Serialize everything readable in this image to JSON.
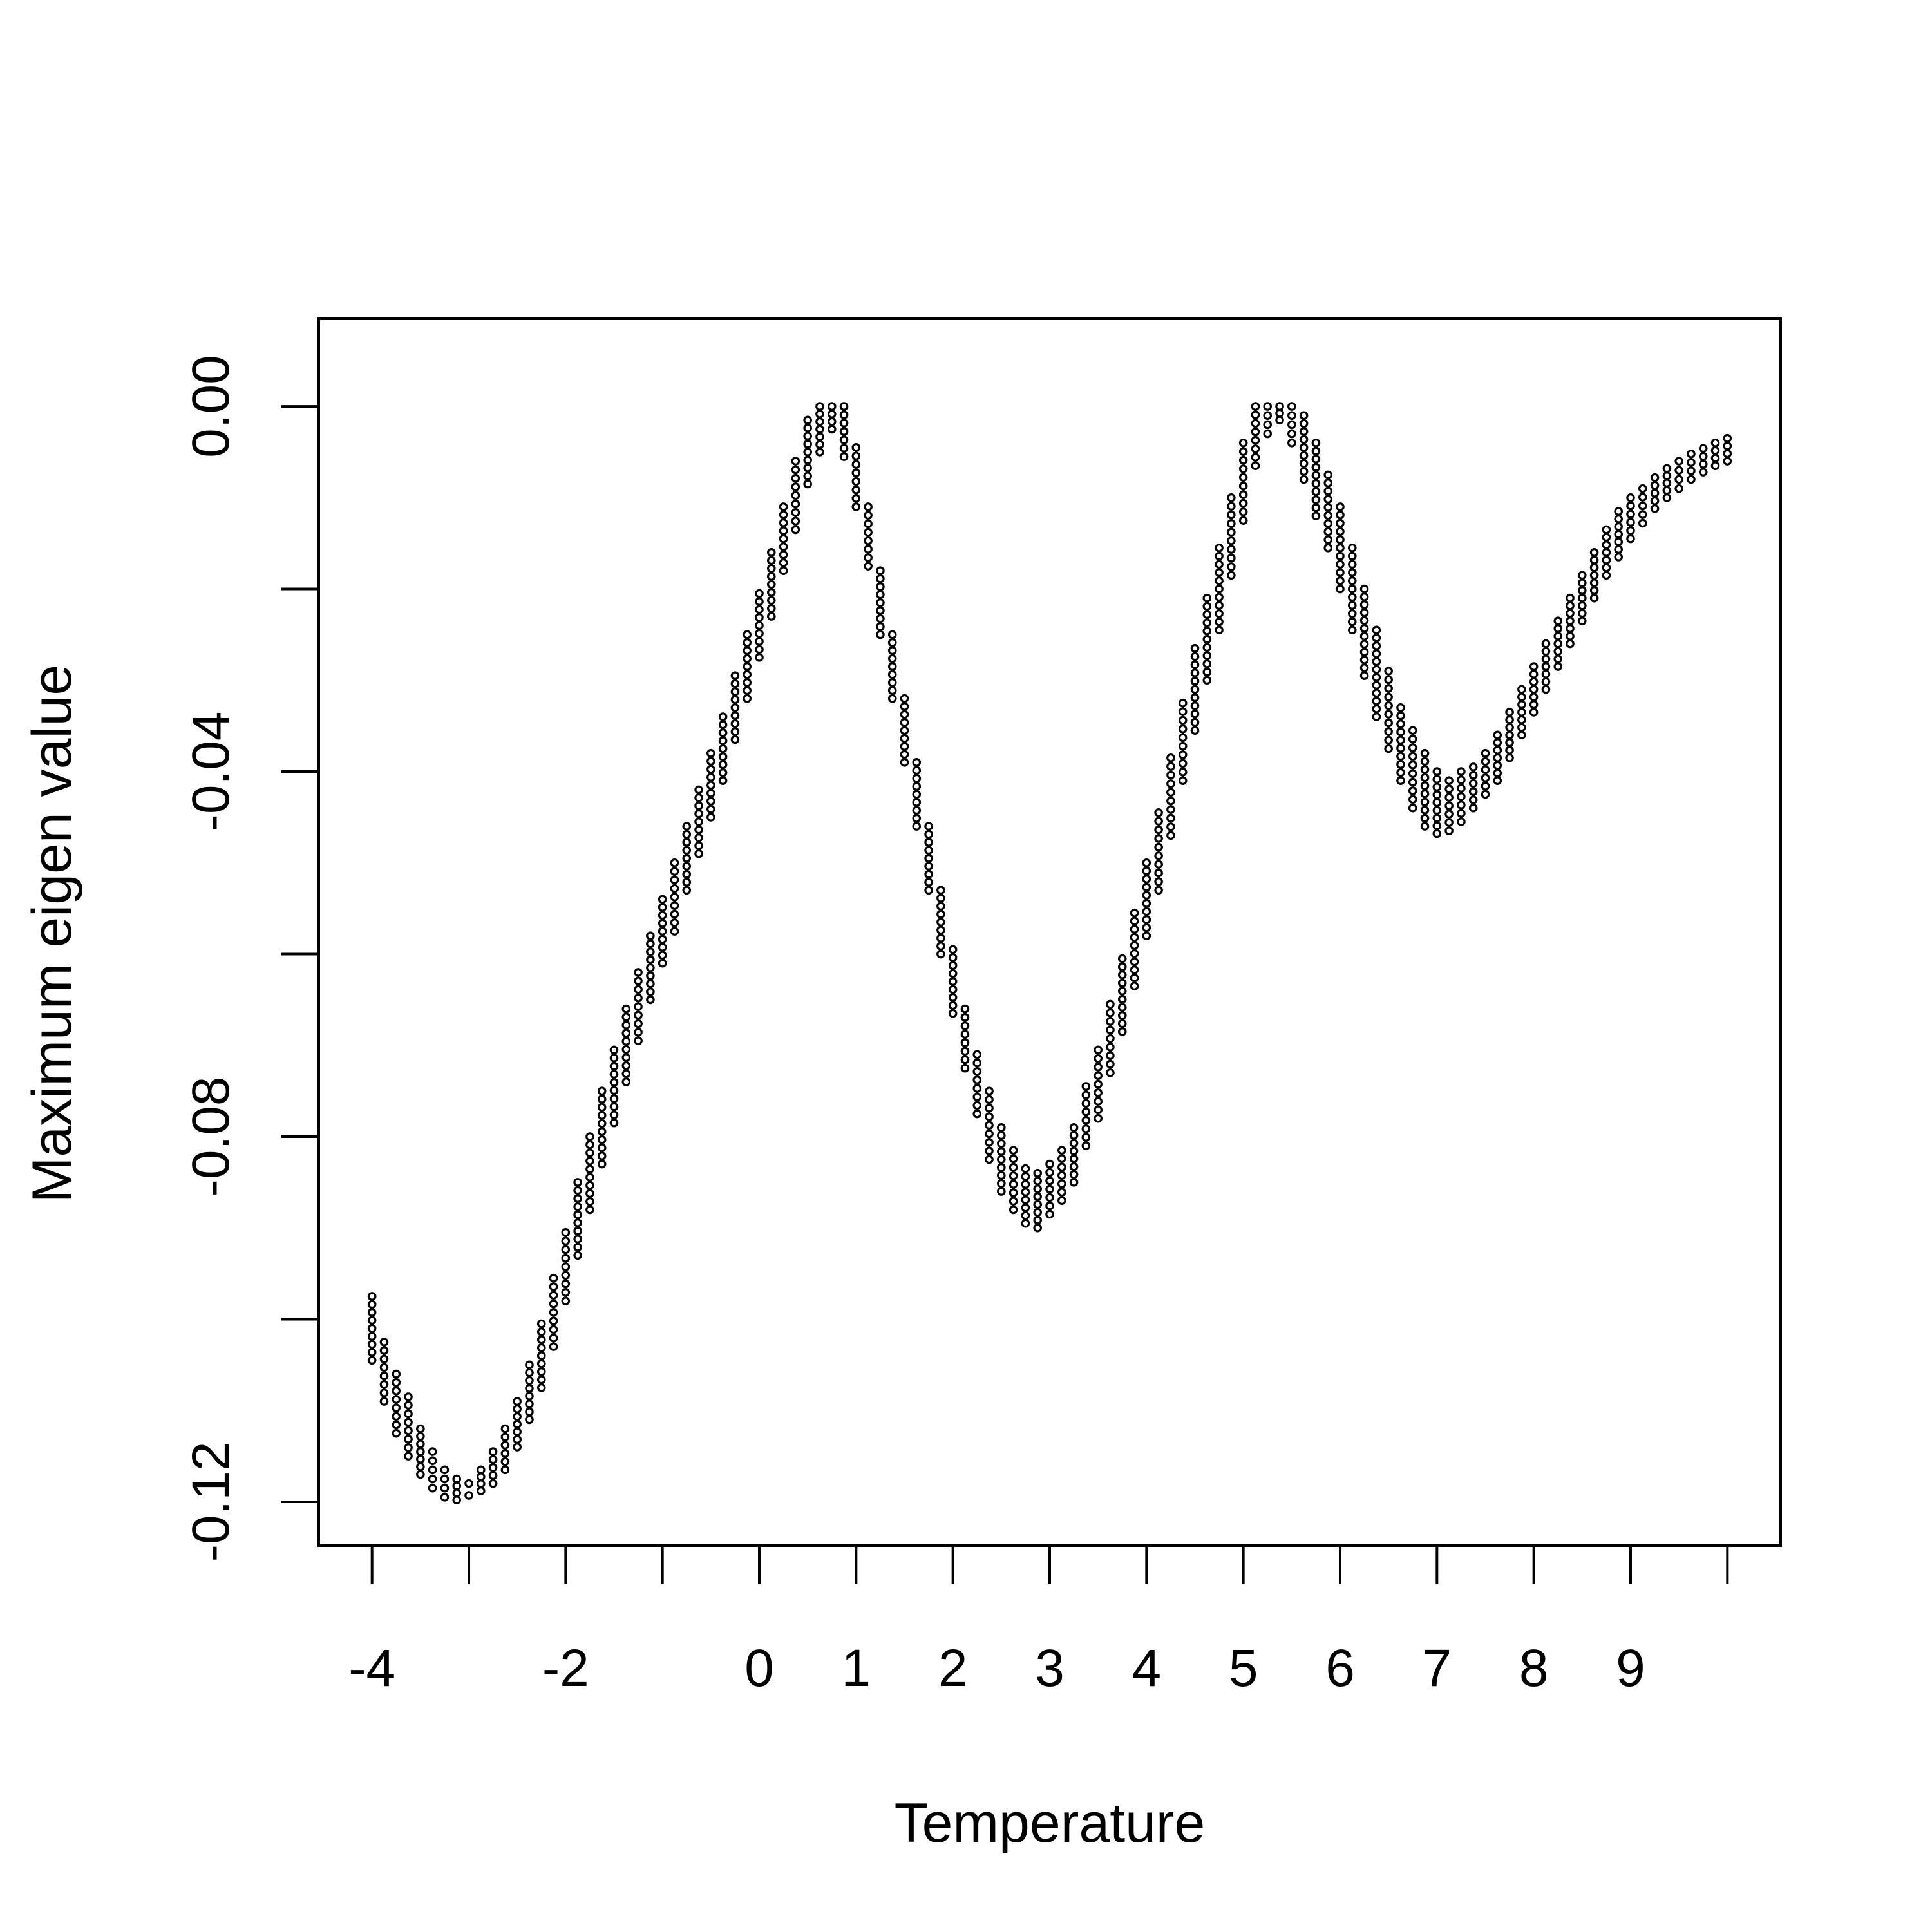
{
  "chart_data": {
    "type": "scatter",
    "title": "",
    "xlabel": "Temperature",
    "ylabel": "Maximum eigen value",
    "xlim": [
      -4.55,
      10.55
    ],
    "ylim": [
      -0.1248,
      0.0096
    ],
    "x_axis": {
      "tick_values": [
        -4,
        -3,
        -2,
        -1,
        0,
        1,
        2,
        3,
        4,
        5,
        6,
        7,
        8,
        9,
        10
      ],
      "tick_labels": [
        "-4",
        "",
        "-2",
        "",
        "0",
        "1",
        "2",
        "3",
        "4",
        "5",
        "6",
        "7",
        "8",
        "9",
        ""
      ]
    },
    "y_axis": {
      "tick_values": [
        0.0,
        -0.02,
        -0.04,
        -0.06,
        -0.08,
        -0.1,
        -0.12
      ],
      "tick_labels": [
        "0.00",
        "",
        "-0.04",
        "",
        "-0.08",
        "",
        "-0.12"
      ]
    },
    "grid": false,
    "legend": "none",
    "point_color": "#000000",
    "series": [
      {
        "columns_x_start": -4,
        "columns_x_step": 0.125,
        "column_ranges": [
          [
            -0.1045,
            -0.0975
          ],
          [
            -0.109,
            -0.1025
          ],
          [
            -0.1125,
            -0.106
          ],
          [
            -0.115,
            -0.1085
          ],
          [
            -0.117,
            -0.112
          ],
          [
            -0.1185,
            -0.1145
          ],
          [
            -0.1195,
            -0.1165
          ],
          [
            -0.1198,
            -0.1175
          ],
          [
            -0.1193,
            -0.118
          ],
          [
            -0.1188,
            -0.1165
          ],
          [
            -0.118,
            -0.1145
          ],
          [
            -0.1165,
            -0.112
          ],
          [
            -0.114,
            -0.109
          ],
          [
            -0.111,
            -0.105
          ],
          [
            -0.1075,
            -0.1005
          ],
          [
            -0.103,
            -0.0955
          ],
          [
            -0.098,
            -0.0905
          ],
          [
            -0.093,
            -0.085
          ],
          [
            -0.088,
            -0.08
          ],
          [
            -0.083,
            -0.075
          ],
          [
            -0.0785,
            -0.0705
          ],
          [
            -0.074,
            -0.066
          ],
          [
            -0.0695,
            -0.062
          ],
          [
            -0.065,
            -0.058
          ],
          [
            -0.061,
            -0.054
          ],
          [
            -0.0575,
            -0.05
          ],
          [
            -0.053,
            -0.046
          ],
          [
            -0.049,
            -0.042
          ],
          [
            -0.045,
            -0.038
          ],
          [
            -0.041,
            -0.034
          ],
          [
            -0.0365,
            -0.0295
          ],
          [
            -0.032,
            -0.025
          ],
          [
            -0.0275,
            -0.0205
          ],
          [
            -0.023,
            -0.016
          ],
          [
            -0.018,
            -0.011
          ],
          [
            -0.0135,
            -0.006
          ],
          [
            -0.0085,
            -0.0015
          ],
          [
            -0.005,
            0.0
          ],
          [
            -0.0025,
            0.0
          ],
          [
            -0.0055,
            0.0
          ],
          [
            -0.011,
            -0.0045
          ],
          [
            -0.0175,
            -0.011
          ],
          [
            -0.025,
            -0.018
          ],
          [
            -0.032,
            -0.025
          ],
          [
            -0.039,
            -0.032
          ],
          [
            -0.046,
            -0.039
          ],
          [
            -0.053,
            -0.046
          ],
          [
            -0.06,
            -0.053
          ],
          [
            -0.0665,
            -0.0595
          ],
          [
            -0.0725,
            -0.066
          ],
          [
            -0.0775,
            -0.071
          ],
          [
            -0.0825,
            -0.075
          ],
          [
            -0.086,
            -0.079
          ],
          [
            -0.088,
            -0.0815
          ],
          [
            -0.0895,
            -0.0835
          ],
          [
            -0.09,
            -0.084
          ],
          [
            -0.0885,
            -0.083
          ],
          [
            -0.087,
            -0.0815
          ],
          [
            -0.085,
            -0.079
          ],
          [
            -0.081,
            -0.0745
          ],
          [
            -0.078,
            -0.0705
          ],
          [
            -0.073,
            -0.0655
          ],
          [
            -0.0685,
            -0.0605
          ],
          [
            -0.0635,
            -0.0555
          ],
          [
            -0.058,
            -0.05
          ],
          [
            -0.053,
            -0.0445
          ],
          [
            -0.047,
            -0.0385
          ],
          [
            -0.041,
            -0.0325
          ],
          [
            -0.0355,
            -0.0265
          ],
          [
            -0.03,
            -0.021
          ],
          [
            -0.0245,
            -0.0155
          ],
          [
            -0.0185,
            -0.01
          ],
          [
            -0.0125,
            -0.004
          ],
          [
            -0.0065,
            0.0
          ],
          [
            -0.003,
            0.0
          ],
          [
            -0.0015,
            0.0
          ],
          [
            -0.004,
            0.0
          ],
          [
            -0.008,
            -0.001
          ],
          [
            -0.012,
            -0.004
          ],
          [
            -0.0155,
            -0.0075
          ],
          [
            -0.02,
            -0.011
          ],
          [
            -0.0245,
            -0.0155
          ],
          [
            -0.0295,
            -0.02
          ],
          [
            -0.034,
            -0.0245
          ],
          [
            -0.0375,
            -0.029
          ],
          [
            -0.041,
            -0.033
          ],
          [
            -0.044,
            -0.0355
          ],
          [
            -0.046,
            -0.038
          ],
          [
            -0.0468,
            -0.04
          ],
          [
            -0.0465,
            -0.041
          ],
          [
            -0.0455,
            -0.04
          ],
          [
            -0.044,
            -0.0395
          ],
          [
            -0.0425,
            -0.038
          ],
          [
            -0.041,
            -0.036
          ],
          [
            -0.0385,
            -0.0335
          ],
          [
            -0.036,
            -0.031
          ],
          [
            -0.0335,
            -0.0285
          ],
          [
            -0.031,
            -0.026
          ],
          [
            -0.0285,
            -0.0235
          ],
          [
            -0.026,
            -0.021
          ],
          [
            -0.0235,
            -0.0185
          ],
          [
            -0.021,
            -0.016
          ],
          [
            -0.0185,
            -0.0135
          ],
          [
            -0.0165,
            -0.0115
          ],
          [
            -0.0145,
            -0.01
          ],
          [
            -0.0128,
            -0.009
          ],
          [
            -0.0112,
            -0.0078
          ],
          [
            -0.01,
            -0.0068
          ],
          [
            -0.009,
            -0.006
          ],
          [
            -0.008,
            -0.0052
          ],
          [
            -0.0072,
            -0.0046
          ],
          [
            -0.0065,
            -0.004
          ],
          [
            -0.006,
            -0.0035
          ]
        ],
        "isolated_points": [
          [
            -4,
            -0.0975
          ]
        ]
      }
    ]
  }
}
